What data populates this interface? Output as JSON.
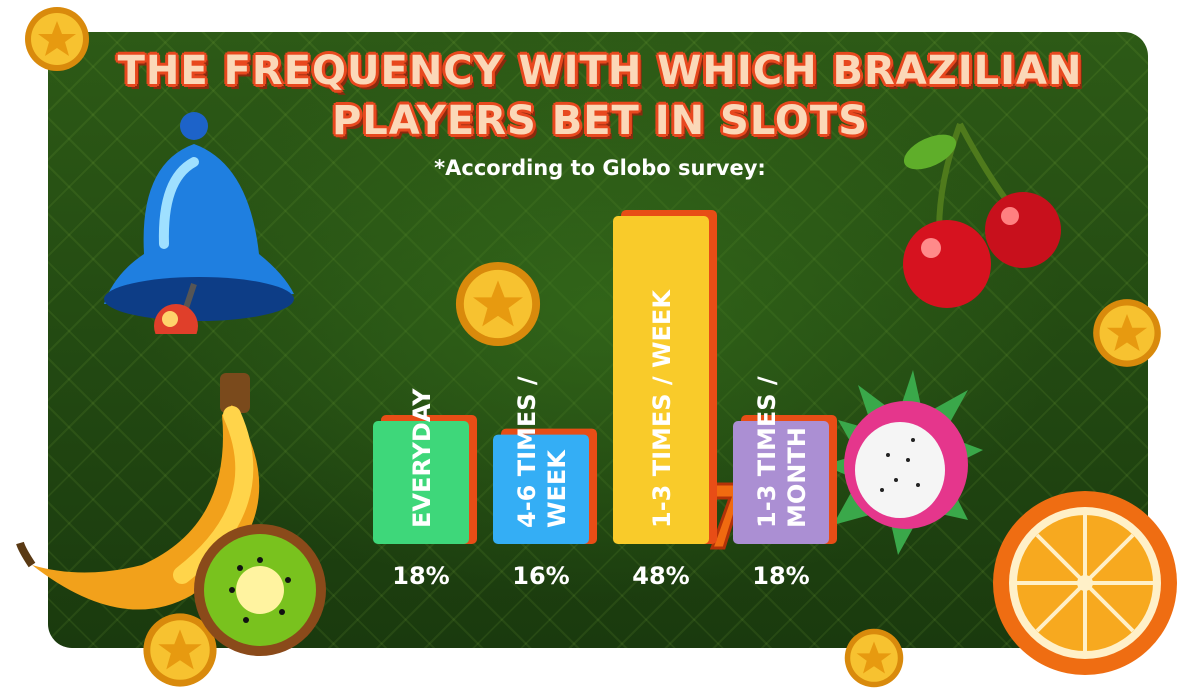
{
  "title_line1": "THE FREQUENCY WITH WHICH BRAZILIAN",
  "title_line2": "PLAYERS BET IN SLOTS",
  "subtitle": "*According to Globo survey:",
  "chart_data": {
    "type": "bar",
    "categories": [
      "EVERYDAY",
      "4-6 TIMES / WEEK",
      "1-3 TIMES / WEEK",
      "1-3 TIMES / MONTH"
    ],
    "values": [
      18,
      16,
      48,
      18
    ],
    "value_labels": [
      "18%",
      "16%",
      "48%",
      "18%"
    ],
    "category_lines": [
      [
        "EVERYDAY"
      ],
      [
        "4-6 TIMES /",
        "WEEK"
      ],
      [
        "1-3 TIMES / WEEK"
      ],
      [
        "1-3 TIMES /",
        "MONTH"
      ]
    ],
    "colors": [
      "#3ed77a",
      "#34aef5",
      "#f9cb2a",
      "#ab8fd3"
    ],
    "shadow_color": "#e84d16",
    "title": "",
    "xlabel": "",
    "ylabel": ""
  },
  "decorations": {
    "coins": [
      "coin-icon"
    ],
    "fruits": [
      "bell-icon",
      "cherry-icon",
      "banana-icon",
      "kiwi-icon",
      "dragon-fruit-icon",
      "orange-icon",
      "seven-icon"
    ]
  }
}
